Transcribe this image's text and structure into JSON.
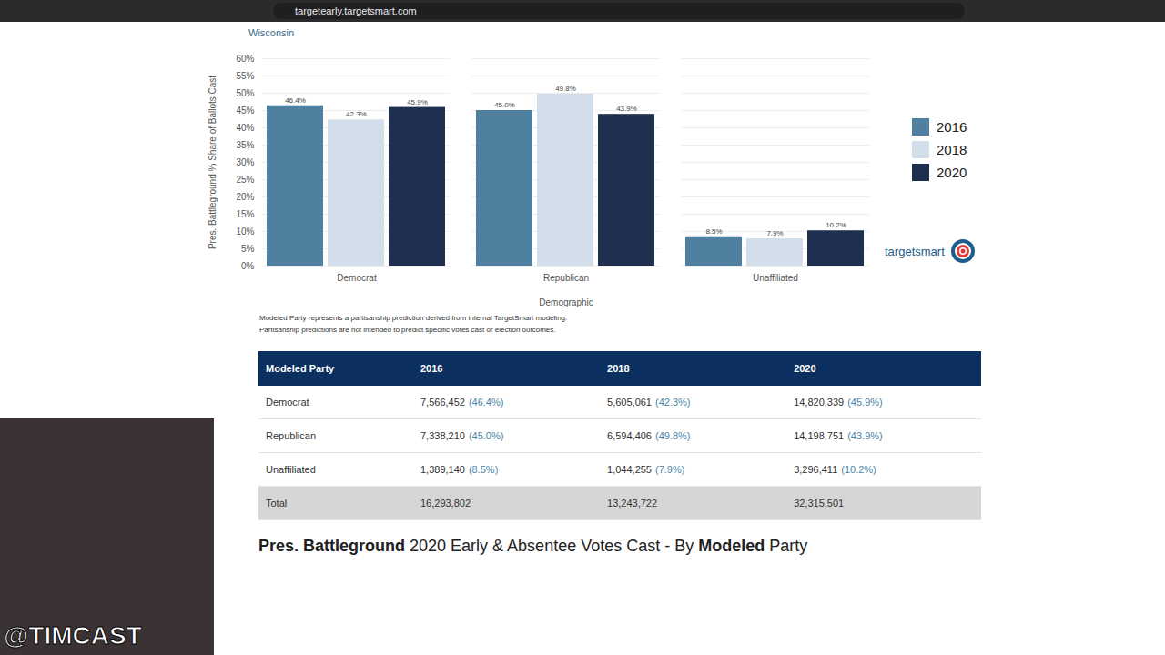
{
  "browser": {
    "url": "targetearly.targetsmart.com"
  },
  "section": "Wisconsin",
  "chart_data": {
    "type": "bar",
    "ylabel": "Pres. Battleground % Share of Ballots Cast",
    "xlabel": "Demographic",
    "categories": [
      "Democrat",
      "Republican",
      "Unaffiliated"
    ],
    "series": [
      {
        "name": "2016",
        "color": "#4f809f",
        "values": [
          46.4,
          45.0,
          8.5
        ],
        "value_labels": [
          "46.4%",
          "45.0%",
          "8.5%"
        ]
      },
      {
        "name": "2018",
        "color": "#d3deeb",
        "values": [
          42.3,
          49.8,
          7.9
        ],
        "value_labels": [
          "42.3%",
          "49.8%",
          "7.9%"
        ]
      },
      {
        "name": "2020",
        "color": "#1e2f4f",
        "values": [
          45.9,
          43.9,
          10.2
        ],
        "value_labels": [
          "45.9%",
          "43.9%",
          "10.2%"
        ]
      }
    ],
    "ylim": [
      0,
      60
    ],
    "yticks": [
      {
        "value": 0,
        "label": "0%"
      },
      {
        "value": 5,
        "label": "5%"
      },
      {
        "value": 10,
        "label": "10%"
      },
      {
        "value": 15,
        "label": "15%"
      },
      {
        "value": 20,
        "label": "20%"
      },
      {
        "value": 25,
        "label": "25%"
      },
      {
        "value": 30,
        "label": "30%"
      },
      {
        "value": 35,
        "label": "35%"
      },
      {
        "value": 40,
        "label": "40%"
      },
      {
        "value": 45,
        "label": "45%"
      },
      {
        "value": 50,
        "label": "50%"
      },
      {
        "value": 55,
        "label": "55%"
      },
      {
        "value": 60,
        "label": "60%"
      }
    ],
    "grid": true,
    "data_labels": true,
    "legend": "right"
  },
  "logo": "targetsmart",
  "notes": [
    "Modeled Party represents a partisanship prediction derived from internal TargetSmart modeling.",
    "Partisanship predictions are not intended to predict specific votes cast or election outcomes."
  ],
  "table": {
    "header": [
      "Modeled Party",
      "2016",
      "2018",
      "2020"
    ],
    "rows": [
      [
        "Democrat",
        {
          "n": "7,566,452",
          "p": "(46.4%)"
        },
        {
          "n": "5,605,061",
          "p": "(42.3%)"
        },
        {
          "n": "14,820,339",
          "p": "(45.9%)"
        }
      ],
      [
        "Republican",
        {
          "n": "7,338,210",
          "p": "(45.0%)"
        },
        {
          "n": "6,594,406",
          "p": "(49.8%)"
        },
        {
          "n": "14,198,751",
          "p": "(43.9%)"
        }
      ],
      [
        "Unaffiliated",
        {
          "n": "1,389,140",
          "p": "(8.5%)"
        },
        {
          "n": "1,044,255",
          "p": "(7.9%)"
        },
        {
          "n": "3,296,411",
          "p": "(10.2%)"
        }
      ]
    ],
    "total": [
      "Total",
      "16,293,802",
      "13,243,722",
      "32,315,501"
    ]
  },
  "next_heading": [
    {
      "text": "Pres. Battleground",
      "bold": true
    },
    {
      "text": " 2020 Early & Absentee Votes Cast - By ",
      "bold": false
    },
    {
      "text": "Modeled",
      "bold": true
    },
    {
      "text": " Party",
      "bold": false
    }
  ],
  "watermark": "@TIMCAST"
}
